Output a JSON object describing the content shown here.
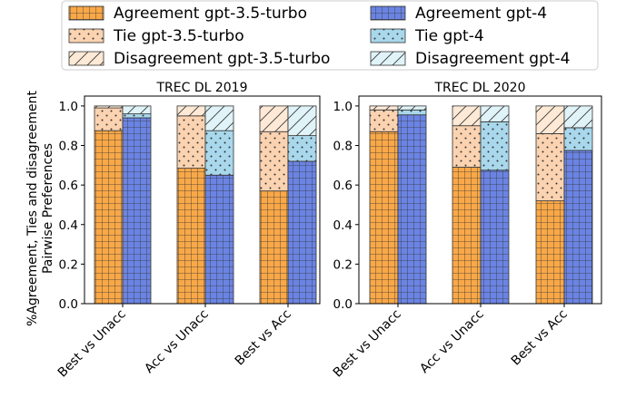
{
  "chart_data": {
    "type": "bar",
    "stacked": true,
    "legend": {
      "placement": "top",
      "entries": [
        {
          "name": "Agreement gpt-3.5-turbo",
          "fill": "#f9a848",
          "pattern": "grid"
        },
        {
          "name": "Tie gpt-3.5-turbo",
          "fill": "#fbd3b1",
          "pattern": "dots"
        },
        {
          "name": "Disagreement gpt-3.5-turbo",
          "fill": "#fde9d5",
          "pattern": "diagonal"
        },
        {
          "name": "Agreement gpt-4",
          "fill": "#6b84e3",
          "pattern": "grid"
        },
        {
          "name": "Tie gpt-4",
          "fill": "#a9d8ec",
          "pattern": "dots"
        },
        {
          "name": "Disagreement gpt-4",
          "fill": "#dff3f8",
          "pattern": "diagonal"
        }
      ]
    },
    "ylabel": "%Agreement, Ties and disagreement\nPairwise Preferences",
    "ylim": [
      0,
      1.05
    ],
    "yticks": [
      "0.0",
      "0.2",
      "0.4",
      "0.6",
      "0.8",
      "1.0"
    ],
    "categories": [
      "Best vs Unacc",
      "Acc vs Unacc",
      "Best vs Acc"
    ],
    "panels": [
      {
        "title": "TREC DL 2019",
        "series": [
          {
            "model": "gpt-3.5-turbo",
            "agreement": [
              0.875,
              0.685,
              0.57
            ],
            "tie": [
              0.115,
              0.265,
              0.3
            ],
            "disagreement": [
              0.01,
              0.05,
              0.13
            ]
          },
          {
            "model": "gpt-4",
            "agreement": [
              0.94,
              0.65,
              0.72
            ],
            "tie": [
              0.02,
              0.225,
              0.13
            ],
            "disagreement": [
              0.04,
              0.125,
              0.15
            ]
          }
        ]
      },
      {
        "title": "TREC DL 2020",
        "series": [
          {
            "model": "gpt-3.5-turbo",
            "agreement": [
              0.87,
              0.69,
              0.52
            ],
            "tie": [
              0.11,
              0.21,
              0.34
            ],
            "disagreement": [
              0.02,
              0.1,
              0.14
            ]
          },
          {
            "model": "gpt-4",
            "agreement": [
              0.955,
              0.675,
              0.775
            ],
            "tie": [
              0.025,
              0.245,
              0.115
            ],
            "disagreement": [
              0.02,
              0.08,
              0.11
            ]
          }
        ]
      }
    ]
  }
}
